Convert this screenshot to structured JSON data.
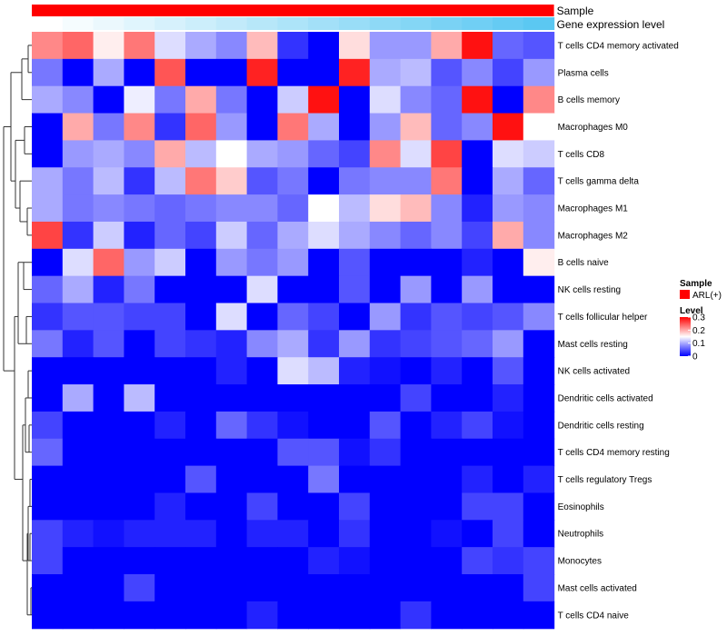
{
  "chart_data": {
    "type": "heatmap",
    "title": "",
    "color_scale": {
      "low": "#0000FF",
      "mid": "#FFFFFF",
      "high": "#FF0000",
      "domain": [
        0,
        0.15,
        0.3
      ]
    },
    "column_annotations": [
      {
        "name": "Sample",
        "kind": "constant",
        "color": "#FF0000",
        "value": "ARL(+)"
      },
      {
        "name": "Gene expression level",
        "kind": "gradient",
        "from": "#FFFFFF",
        "to": "#5BC8F2"
      }
    ],
    "rows": [
      "T cells CD4 memory activated",
      "Plasma cells",
      "B cells memory",
      "Macrophages M0",
      "T cells CD8",
      "T cells gamma delta",
      "Macrophages M1",
      "Macrophages M2",
      "B cells naive",
      "NK cells resting",
      "T cells follicular helper",
      "Mast cells resting",
      "NK cells activated",
      "Dendritic cells activated",
      "Dendritic cells resting",
      "T cells CD4 memory resting",
      "T cells regulatory  Tregs",
      "Eosinophils",
      "Neutrophils",
      "Monocytes",
      "Mast cells activated",
      "T cells CD4 naive"
    ],
    "values": [
      [
        0.22,
        0.24,
        0.16,
        0.23,
        0.13,
        0.1,
        0.08,
        0.19,
        0.03,
        0.0,
        0.17,
        0.09,
        0.09,
        0.2,
        0.29,
        0.06,
        0.05
      ],
      [
        0.07,
        0.0,
        0.1,
        0.0,
        0.25,
        0.0,
        0.0,
        0.28,
        0.0,
        0.0,
        0.28,
        0.1,
        0.11,
        0.05,
        0.08,
        0.04,
        0.09
      ],
      [
        0.1,
        0.08,
        0.0,
        0.14,
        0.07,
        0.2,
        0.07,
        0.0,
        0.12,
        0.29,
        0.0,
        0.13,
        0.08,
        0.06,
        0.29,
        0.0,
        0.22
      ],
      [
        0.0,
        0.2,
        0.07,
        0.22,
        0.03,
        0.24,
        0.09,
        0.0,
        0.23,
        0.1,
        0.0,
        0.09,
        0.19,
        0.06,
        0.08,
        0.29,
        0.15
      ],
      [
        0.0,
        0.09,
        0.1,
        0.08,
        0.2,
        0.11,
        0.15,
        0.1,
        0.09,
        0.06,
        0.04,
        0.22,
        0.13,
        0.26,
        0.0,
        0.13,
        0.12
      ],
      [
        0.1,
        0.07,
        0.11,
        0.03,
        0.11,
        0.23,
        0.18,
        0.05,
        0.07,
        0.0,
        0.07,
        0.08,
        0.08,
        0.23,
        0.0,
        0.1,
        0.06
      ],
      [
        0.1,
        0.07,
        0.08,
        0.07,
        0.06,
        0.07,
        0.08,
        0.08,
        0.06,
        0.15,
        0.11,
        0.17,
        0.19,
        0.08,
        0.02,
        0.09,
        0.08
      ],
      [
        0.26,
        0.03,
        0.12,
        0.02,
        0.06,
        0.04,
        0.12,
        0.06,
        0.1,
        0.13,
        0.1,
        0.08,
        0.06,
        0.08,
        0.04,
        0.2,
        0.08
      ],
      [
        0.0,
        0.13,
        0.24,
        0.09,
        0.12,
        0.0,
        0.09,
        0.07,
        0.09,
        0.0,
        0.05,
        0.0,
        0.0,
        0.0,
        0.02,
        0.0,
        0.16
      ],
      [
        0.06,
        0.1,
        0.02,
        0.07,
        0.0,
        0.0,
        0.0,
        0.13,
        0.0,
        0.0,
        0.05,
        0.0,
        0.09,
        0.0,
        0.09,
        0.0,
        0.0
      ],
      [
        0.03,
        0.05,
        0.05,
        0.04,
        0.04,
        0.0,
        0.13,
        0.0,
        0.06,
        0.04,
        0.0,
        0.09,
        0.03,
        0.05,
        0.04,
        0.05,
        0.08
      ],
      [
        0.07,
        0.02,
        0.05,
        0.0,
        0.04,
        0.03,
        0.02,
        0.08,
        0.1,
        0.03,
        0.09,
        0.03,
        0.04,
        0.05,
        0.06,
        0.09,
        0.0
      ],
      [
        0.0,
        0.0,
        0.0,
        0.0,
        0.0,
        0.0,
        0.02,
        0.0,
        0.13,
        0.11,
        0.02,
        0.01,
        0.0,
        0.02,
        0.0,
        0.05,
        0.0
      ],
      [
        0.0,
        0.1,
        0.0,
        0.11,
        0.0,
        0.0,
        0.0,
        0.0,
        0.0,
        0.0,
        0.0,
        0.0,
        0.04,
        0.0,
        0.0,
        0.02,
        0.0
      ],
      [
        0.04,
        0.0,
        0.0,
        0.0,
        0.02,
        0.0,
        0.06,
        0.03,
        0.01,
        0.0,
        0.0,
        0.05,
        0.0,
        0.02,
        0.04,
        0.01,
        0.0
      ],
      [
        0.06,
        0.0,
        0.0,
        0.0,
        0.0,
        0.0,
        0.0,
        0.0,
        0.05,
        0.05,
        0.01,
        0.03,
        0.0,
        0.0,
        0.0,
        0.0,
        0.0
      ],
      [
        0.0,
        0.0,
        0.0,
        0.0,
        0.0,
        0.05,
        0.0,
        0.0,
        0.0,
        0.07,
        0.0,
        0.0,
        0.0,
        0.0,
        0.02,
        0.0,
        0.02
      ],
      [
        0.0,
        0.0,
        0.0,
        0.0,
        0.02,
        0.0,
        0.0,
        0.04,
        0.0,
        0.0,
        0.04,
        0.0,
        0.0,
        0.0,
        0.04,
        0.04,
        0.0
      ],
      [
        0.04,
        0.02,
        0.01,
        0.02,
        0.02,
        0.02,
        0.0,
        0.02,
        0.02,
        0.0,
        0.03,
        0.0,
        0.0,
        0.01,
        0.0,
        0.04,
        0.0
      ],
      [
        0.04,
        0.0,
        0.0,
        0.0,
        0.0,
        0.0,
        0.0,
        0.0,
        0.0,
        0.02,
        0.01,
        0.0,
        0.0,
        0.0,
        0.04,
        0.03,
        0.04
      ],
      [
        0.0,
        0.0,
        0.0,
        0.04,
        0.0,
        0.0,
        0.0,
        0.0,
        0.0,
        0.0,
        0.0,
        0.0,
        0.0,
        0.0,
        0.0,
        0.0,
        0.04
      ],
      [
        0.0,
        0.0,
        0.0,
        0.0,
        0.0,
        0.0,
        0.0,
        0.02,
        0.0,
        0.0,
        0.0,
        0.0,
        0.03,
        0.0,
        0.0,
        0.0,
        0.0
      ]
    ],
    "row_dendrogram": "left",
    "legend": {
      "sample_title": "Sample",
      "sample_entry": "ARL(+)",
      "level_title": "Level",
      "level_ticks": [
        0.3,
        0.2,
        0.1,
        0
      ],
      "level_tick_labels": [
        "0.3",
        "0.2",
        "0.1",
        "0"
      ],
      "placement": "right"
    }
  }
}
